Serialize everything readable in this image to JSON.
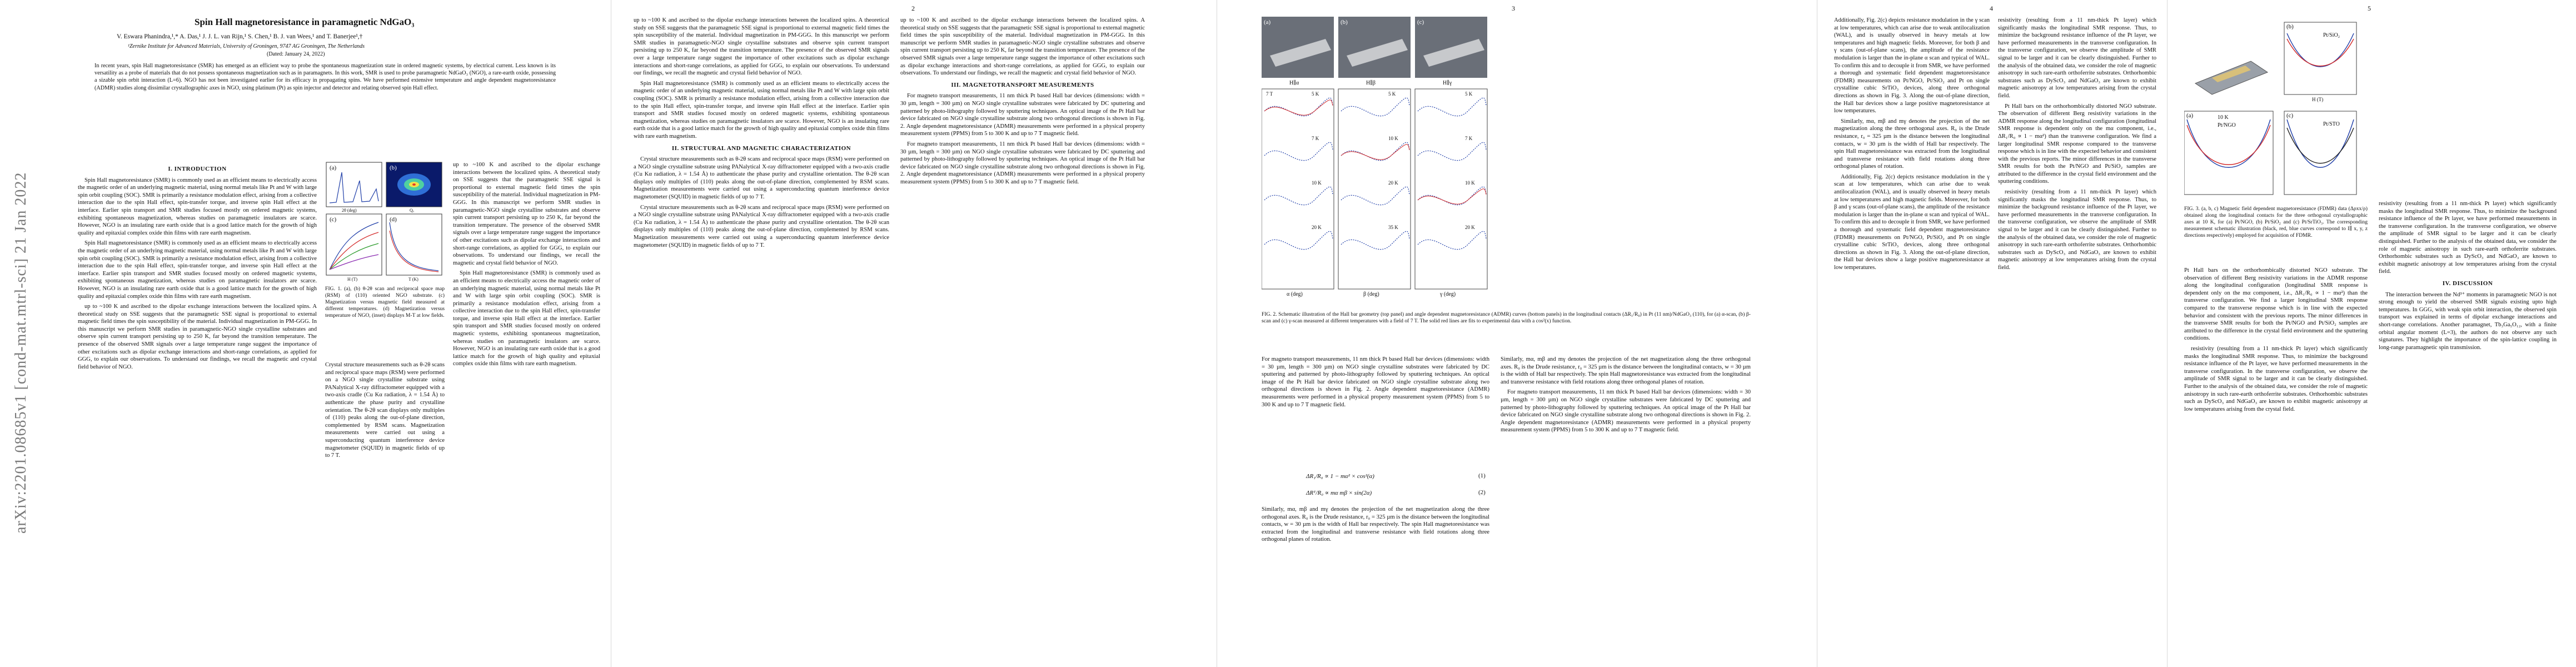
{
  "arxiv_id": "arXiv:2201.08685v1  [cond-mat.mtrl-sci]  21 Jan 2022",
  "page_numbers": [
    "2",
    "3",
    "4",
    "5"
  ],
  "title": "Spin Hall magnetoresistance in paramagnetic NdGaO₃",
  "authors": "V. Eswara Phanindra,¹,* A. Das,¹ J. J. L. van Rijn,¹ S. Chen,¹ B. J. van Wees,¹ and T. Banerjee¹,†",
  "affiliation": "¹Zernike Institute for Advanced Materials, University of Groningen, 9747 AG Groningen, The Netherlands",
  "date": "(Dated: January 24, 2022)",
  "abstract": "In recent years, spin Hall magnetoresistance (SMR) has emerged as an efficient way to probe the spontaneous magnetization state in ordered magnetic systems, by electrical current. Less known is its versatility as a probe of materials that do not possess spontaneous magnetization such as in paramagnets. In this work, SMR is used to probe paramagnetic NdGaO₃ (NGO), a rare-earth oxide, possessing a sizable spin orbit interaction (L=6). NGO has not been investigated earlier for its efficacy in propagating spins. We have performed extensive temperature and angle dependent magnetoresistance (ADMR) studies along dissimilar crystallographic axes in NGO, using platinum (Pt) as spin injector and detector and relating observed spin Hall effect.",
  "sections": {
    "intro": "I.   INTRODUCTION",
    "structural": "II.   STRUCTURAL AND MAGNETIC CHARACTERIZATION",
    "magnetotransport": "III.   MAGNETOTRANSPORT MEASUREMENTS",
    "discussion": "IV.   DISCUSSION"
  },
  "intro_text": "Spin Hall magnetoresistance (SMR) is commonly used as an efficient means to electrically access the magnetic order of an underlying magnetic material, using normal metals like Pt and W with large spin orbit coupling (SOC). SMR is primarily a resistance modulation effect, arising from a collective interaction due to the spin Hall effect, spin-transfer torque, and inverse spin Hall effect at the interface. Earlier spin transport and SMR studies focused mostly on ordered magnetic systems, exhibiting spontaneous magnetization, whereas studies on paramagnetic insulators are scarce. However, NGO is an insulating rare earth oxide that is a good lattice match for the growth of high quality and epitaxial complex oxide thin films with rare earth magnetism.",
  "col2_text": "up to ~100 K and ascribed to the dipolar exchange interactions between the localized spins. A theoretical study on SSE suggests that the paramagnetic SSE signal is proportional to external magnetic field times the spin susceptibility of the material. Individual magnetization in PM-GGG. In this manuscript we perform SMR studies in paramagnetic-NGO single crystalline substrates and observe spin current transport persisting up to 250 K, far beyond the transition temperature. The presence of the observed SMR signals over a large temperature range suggest the importance of other excitations such as dipolar exchange interactions and short-range correlations, as applied for GGG, to explain our observations. To understand our findings, we recall the magnetic and crystal field behavior of NGO.",
  "structural_text": "Crystal structure measurements such as θ-2θ scans and reciprocal space maps (RSM) were performed on a NGO single crystalline substrate using PANalytical X-ray diffractometer equipped with a two-axis cradle (Cu Kα radiation, λ = 1.54 Å) to authenticate the phase purity and crystalline orientation. The θ-2θ scan displays only multiples of (110) peaks along the out-of-plane direction, complemented by RSM scans. Magnetization measurements were carried out using a superconducting quantum interference device magnetometer (SQUID) in magnetic fields of up to 7 T.",
  "mt_text_a": "For magneto transport measurements, 11 nm thick Pt based Hall bar devices (dimensions: width = 30 µm, length = 300 µm) on NGO single crystalline substrates were fabricated by DC sputtering and patterned by photo-lithography followed by sputtering techniques. An optical image of the Pt Hall bar device fabricated on NGO single crystalline substrate along two orthogonal directions is shown in Fig. 2. Angle dependent magnetoresistance (ADMR) measurements were performed in a physical property measurement system (PPMS) from 5 to 300 K and up to 7 T magnetic field.",
  "mt_text_b": "Similarly, mα, mβ and mγ denotes the projection of the net magnetization along the three orthogonal axes. R₀ is the Drude resistance, r₀ = 325 µm is the distance between the longitudinal contacts, w = 30 µm is the width of Hall bar respectively. The spin Hall magnetoresistance was extracted from the longitudinal and transverse resistance with field rotations along three orthogonal planes of rotation.",
  "col4_text": "Additionally, Fig. 2(c) depicts resistance modulation in the γ scan at low temperatures, which can arise due to weak antilocalization (WAL), and is usually observed in heavy metals at low temperatures and high magnetic fields. Moreover, for both β and γ scans (out-of-plane scans), the amplitude of the resistance modulation is larger than the in-plane α scan and typical of WAL. To confirm this and to decouple it from SMR, we have performed a thorough and systematic field dependent magnetoresistance (FDMR) measurements on Pt/NGO, Pt/SiO₂ and Pt on single crystalline cubic SrTiO₃ devices, along three orthogonal directions as shown in Fig. 3. Along the out-of-plane direction, the Hall bar devices show a large positive magnetoresistance at low temperatures.",
  "col5_text": "resistivity (resulting from a 11 nm-thick Pt layer) which significantly masks the longitudinal SMR response. Thus, to minimize the background resistance influence of the Pt layer, we have performed measurements in the transverse configuration. In the transverse configuration, we observe the amplitude of SMR signal to be larger and it can be clearly distinguished. Further to the analysis of the obtained data, we consider the role of magnetic anisotropy in such rare-earth orthoferrite substrates. Orthorhombic substrates such as DyScO₃ and NdGaO₃ are known to exhibit magnetic anisotropy at low temperatures arising from the crystal field.",
  "col6_text": "Pt Hall bars on the orthorhombically distorted NGO substrate. The observation of different Berg resistivity variations in the ADMR response along the longitudinal configuration (longitudinal SMR response is dependent only on the mα component, i.e., ΔR₁/R₀ ∝ 1 − mα²) than the transverse configuration. We find a larger longitudinal SMR response compared to the transverse response which is in line with the expected behavior and consistent with the previous reports. The minor differences in the transverse SMR results for both the Pt/NGO and Pt/SiO₂ samples are attributed to the difference in the crystal field environment and the sputtering conditions.",
  "discussion_text": "The interaction between the Nd³⁺ moments in paramagnetic NGO is not strong enough to yield the observed SMR signals existing upto high temperatures. In GGG, with weak spin orbit interaction, the observed spin transport was explained in terms of dipolar exchange interactions and short-range correlations. Another paramagnet, Tb₃Ga₅O₁₂, with a finite orbital angular moment (L=3), the authors do not observe any such signatures. They highlight the importance of the spin-lattice coupling in long-range paramagnetic spin transmission.",
  "fig1_caption": "FIG. 1. (a), (b) θ-2θ scan and reciprocal space map (RSM) of (110) oriented NGO substrate. (c) Magnetization versus magnetic field measured at different temperatures. (d) Magnetization versus temperature of NGO, (inset) displays M-T at low fields.",
  "fig2_caption": "FIG. 2. Schematic illustration of the Hall bar geometry (top panel) and angle dependent magnetoresistance (ADMR) curves (bottom panels) in the longitudinal contacts (ΔR₁/R₀) in Pt (11 nm)/NdGaO₃ (110), for (a) α-scan, (b) β-scan and (c) γ-scan measured at different temperatures with a field of 7 T. The solid red lines are fits to experimental data with a cos²(x) function.",
  "fig3_caption": "FIG. 3. (a, b, c) Magnetic field dependent magnetoresistance (FDMR) data (Δρxx/ρ) obtained along the longitudinal contacts for the three orthogonal crystallographic axes at 10 K, for (a) Pt/NGO, (b) Pt/SiO₂ and (c) Pt/SrTiO₃. The corresponding measurement schematic illustration (black, red, blue curves correspond to I∥ x, y, z directions respectively) employed for acquisition of FDMR.",
  "eq1": "ΔR₁/R₀ ∝ 1 − mα² × cos²(α)",
  "eq2": "ΔRᵀ/R₀ ∝ mα mβ × sin(2α)",
  "eq1_num": "(1)",
  "eq2_num": "(2)",
  "fig1": {
    "panel_labels": [
      "(a)",
      "(b)",
      "(c)",
      "(d)"
    ],
    "xlabels": [
      "2θ (deg)",
      "Qₓ",
      "H (T)",
      "T (K)"
    ]
  },
  "fig2": {
    "panel_labels": [
      "(a)",
      "(b)",
      "(c)"
    ],
    "headers": [
      "H∥α",
      "H∥β",
      "H∥γ"
    ],
    "xlabels": [
      "α (deg)",
      "β (deg)",
      "γ (deg)"
    ],
    "ylabel": "ΔR₁/R₀ (10⁻⁵)",
    "temps_a": [
      "5 K",
      "7 K",
      "10 K",
      "20 K"
    ],
    "temps_b": [
      "5 K",
      "10 K",
      "20 K",
      "35 K"
    ],
    "temps_c": [
      "5 K",
      "7 K",
      "10 K",
      "20 K"
    ],
    "field": "7 T"
  },
  "fig3": {
    "panel_labels": [
      "(a)",
      "(b)",
      "(c)"
    ],
    "titles": [
      "Pt/NGO",
      "Pt/SiO₂",
      "Pt/STO"
    ],
    "temp": "10 K",
    "xlabel": "H (T)",
    "ylabel": "Δρ/ρ (10⁻⁴)"
  }
}
